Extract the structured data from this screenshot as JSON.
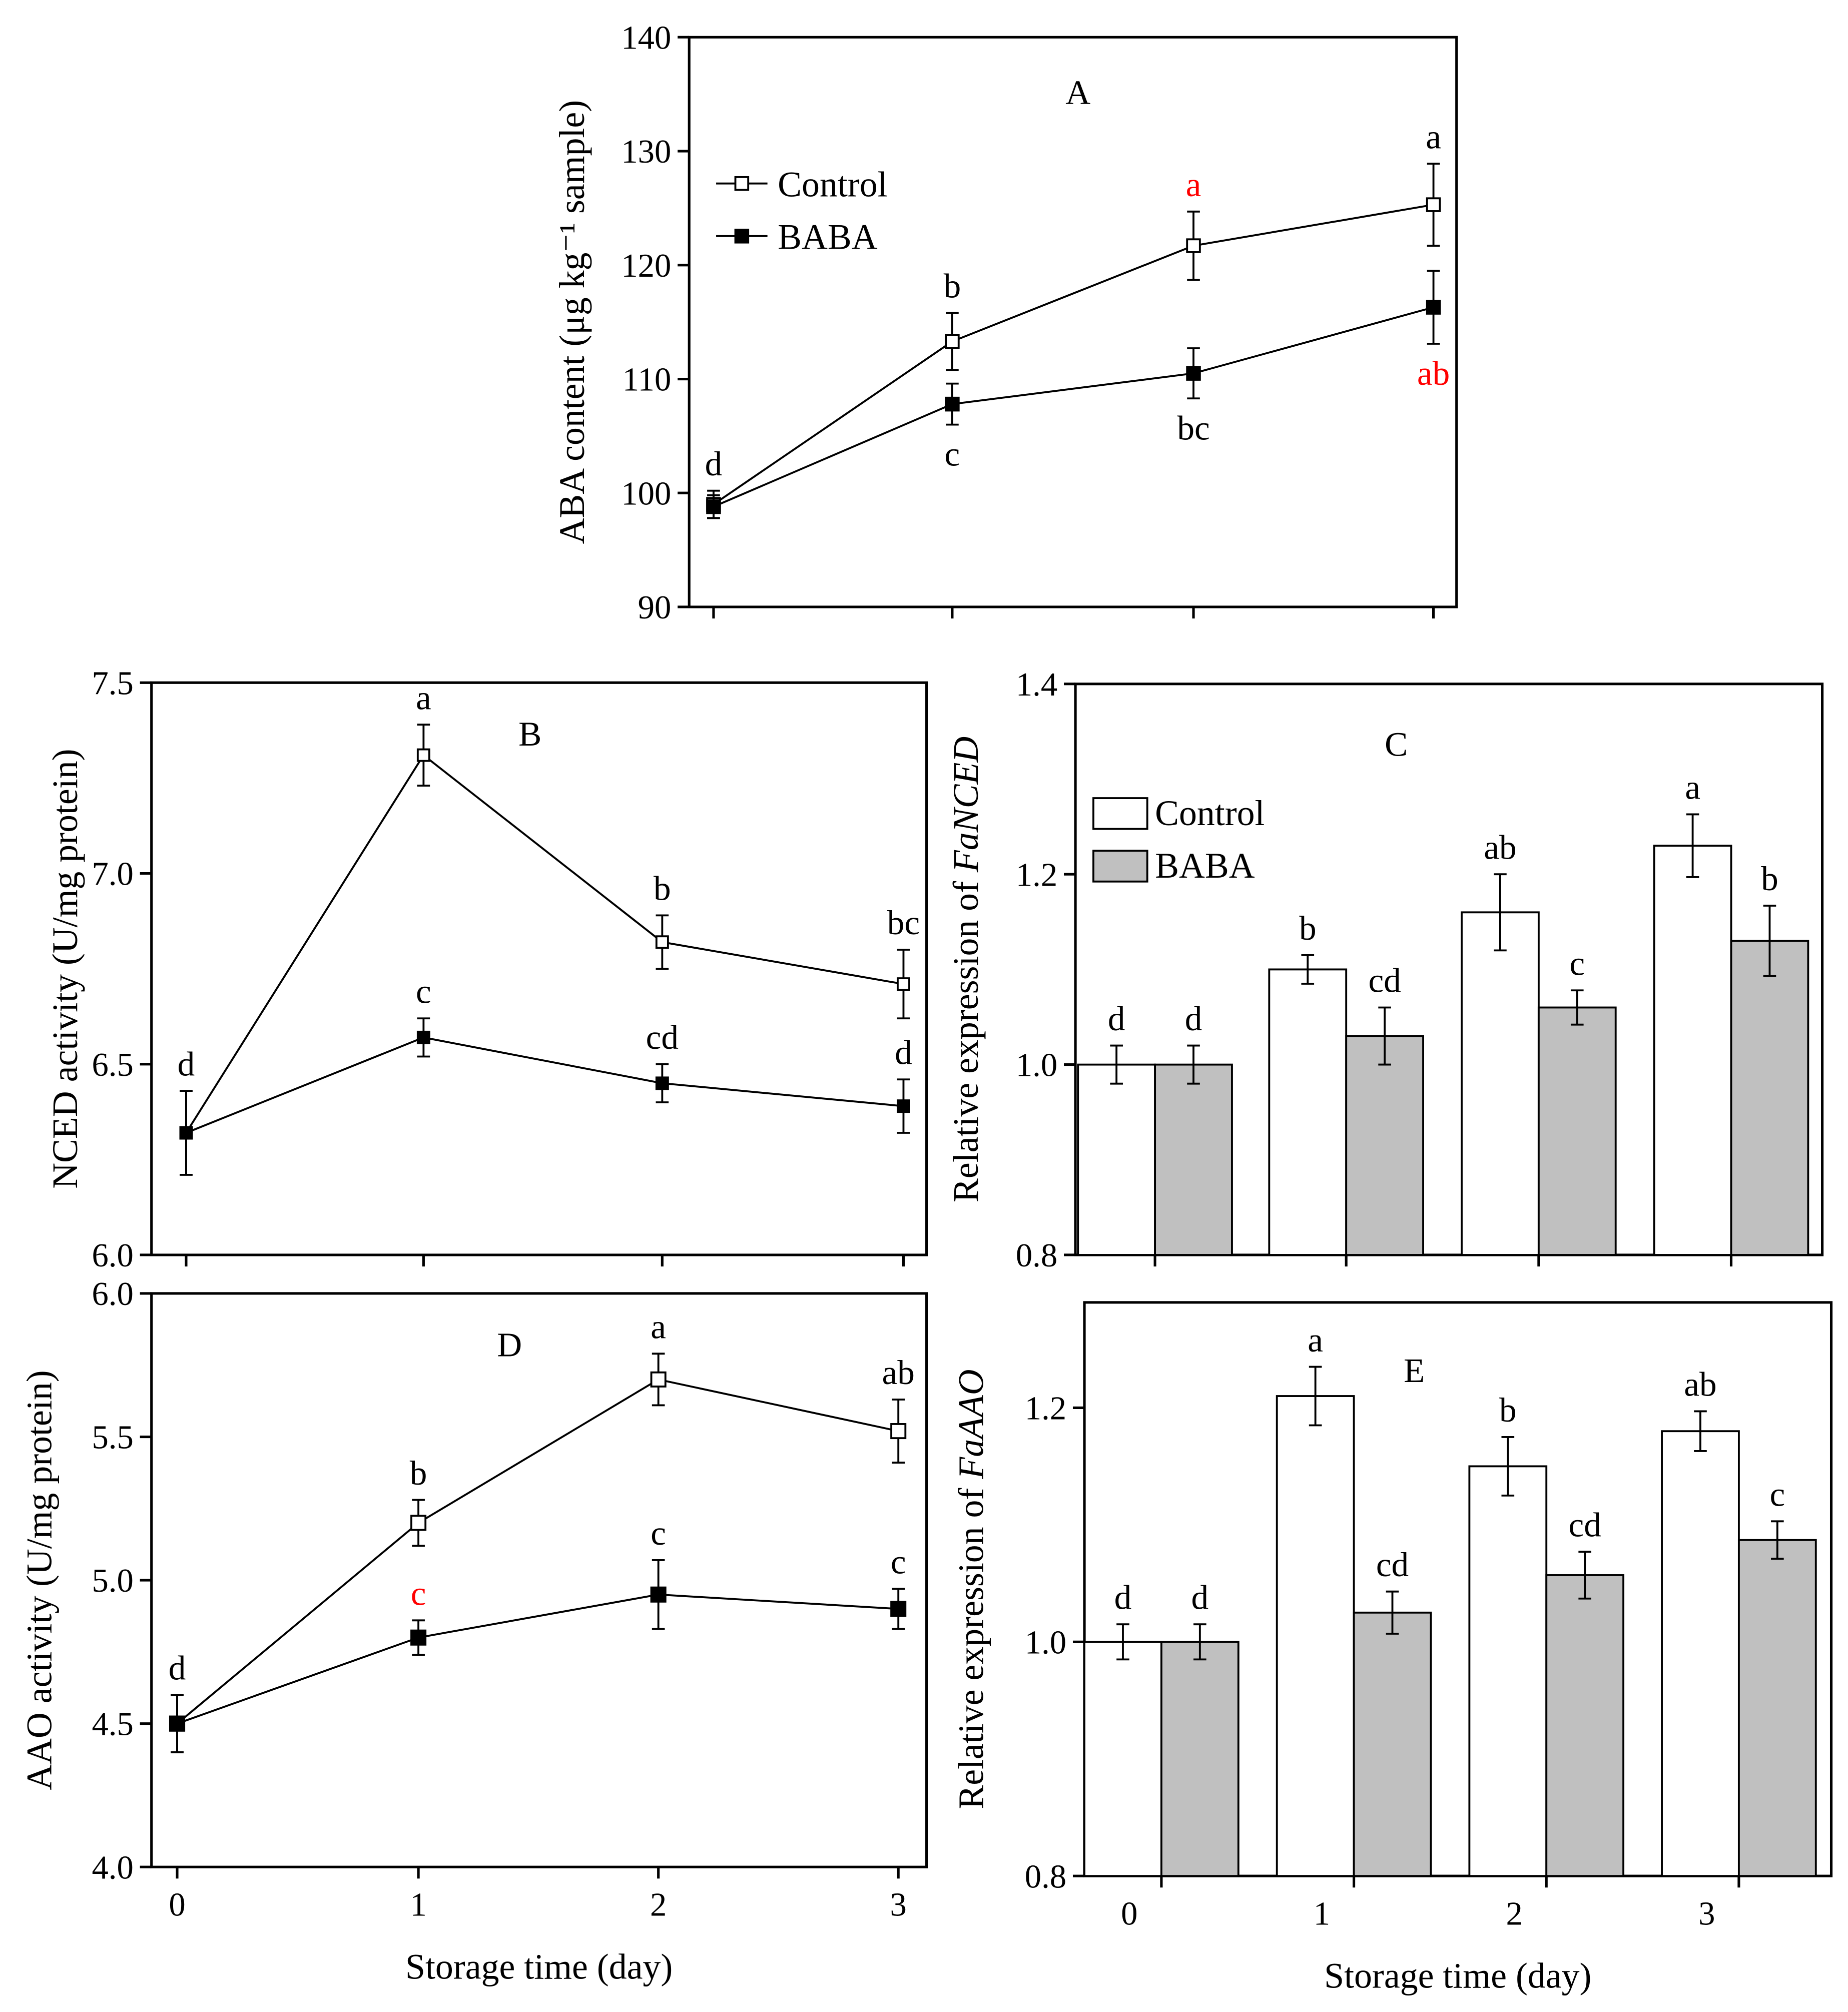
{
  "chart_data": [
    {
      "id": "A",
      "type": "line",
      "panel_label": "A",
      "ylabel": "ABA content (μg kg⁻¹ sample)",
      "ylabel_italic": "",
      "xlabel": "",
      "ylim": [
        90,
        140
      ],
      "yticks": [
        90,
        100,
        110,
        120,
        130,
        140
      ],
      "x": [
        0,
        1,
        2,
        3
      ],
      "xticklabels": [],
      "legend": [
        "Control",
        "BABA"
      ],
      "legend_placement": "upper-left",
      "series": [
        {
          "name": "Control",
          "values": [
            99.0,
            113.3,
            121.7,
            125.3
          ],
          "errors": [
            1.2,
            2.5,
            3.0,
            3.6
          ],
          "letters": [
            "d",
            "b",
            "a",
            "a"
          ],
          "letter_colors": [
            "#000000",
            "#000000",
            "#ff0000",
            "#000000"
          ]
        },
        {
          "name": "BABA",
          "values": [
            98.8,
            107.8,
            110.5,
            116.3
          ],
          "errors": [
            1.0,
            1.8,
            2.2,
            3.2
          ],
          "letters": [
            "",
            "c",
            "bc",
            "ab"
          ],
          "letter_colors": [
            "#000000",
            "#000000",
            "#000000",
            "#ff0000"
          ]
        }
      ]
    },
    {
      "id": "B",
      "type": "line",
      "panel_label": "B",
      "ylabel": "NCED activity (U/mg protein)",
      "ylabel_italic": "",
      "xlabel": "",
      "ylim": [
        6.0,
        7.5
      ],
      "yticks": [
        "6.0",
        "6.5",
        "7.0",
        "7.5"
      ],
      "x": [
        0,
        1,
        2,
        3
      ],
      "xticklabels": [],
      "legend": [],
      "series": [
        {
          "name": "Control",
          "values": [
            6.32,
            7.31,
            6.82,
            6.71
          ],
          "errors": [
            0.11,
            0.08,
            0.07,
            0.09
          ],
          "letters": [
            "d",
            "a",
            "b",
            "bc"
          ],
          "letter_colors": [
            "#000000",
            "#000000",
            "#000000",
            "#000000"
          ]
        },
        {
          "name": "BABA",
          "values": [
            6.32,
            6.57,
            6.45,
            6.39
          ],
          "errors": [
            0.11,
            0.05,
            0.05,
            0.07
          ],
          "letters": [
            "",
            "c",
            "cd",
            "d"
          ],
          "letter_colors": [
            "#000000",
            "#000000",
            "#000000",
            "#000000"
          ]
        }
      ]
    },
    {
      "id": "C",
      "type": "bar",
      "panel_label": "C",
      "ylabel": "Relative expression of ",
      "ylabel_italic": "FaNCED",
      "xlabel": "",
      "ylim": [
        0.8,
        1.4
      ],
      "yticks": [
        "0.8",
        "1.0",
        "1.2",
        "1.4"
      ],
      "categories": [
        "0",
        "1",
        "2",
        "3"
      ],
      "xticklabels": [],
      "legend": [
        "Control",
        "BABA"
      ],
      "legend_placement": "upper-left",
      "series": [
        {
          "name": "Control",
          "values": [
            1.0,
            1.1,
            1.16,
            1.23
          ],
          "errors": [
            0.02,
            0.015,
            0.04,
            0.033
          ],
          "letters": [
            "d",
            "b",
            "ab",
            "a"
          ],
          "letter_colors": [
            "#000000",
            "#000000",
            "#000000",
            "#000000"
          ]
        },
        {
          "name": "BABA",
          "values": [
            1.0,
            1.03,
            1.06,
            1.13
          ],
          "errors": [
            0.02,
            0.03,
            0.018,
            0.037
          ],
          "letters": [
            "d",
            "cd",
            "c",
            "b"
          ],
          "letter_colors": [
            "#000000",
            "#000000",
            "#000000",
            "#000000"
          ]
        }
      ]
    },
    {
      "id": "D",
      "type": "line",
      "panel_label": "D",
      "ylabel": "AAO activity (U/mg protein)",
      "ylabel_italic": "",
      "xlabel": "Storage time (day)",
      "ylim": [
        4.0,
        6.0
      ],
      "yticks": [
        "4.0",
        "4.5",
        "5.0",
        "5.5",
        "6.0"
      ],
      "x": [
        0,
        1,
        2,
        3
      ],
      "xticklabels": [
        "0",
        "1",
        "2",
        "3"
      ],
      "legend": [],
      "series": [
        {
          "name": "Control",
          "values": [
            4.5,
            5.2,
            5.7,
            5.52
          ],
          "errors": [
            0.1,
            0.08,
            0.09,
            0.11
          ],
          "letters": [
            "d",
            "b",
            "a",
            "ab"
          ],
          "letter_colors": [
            "#000000",
            "#000000",
            "#000000",
            "#000000"
          ]
        },
        {
          "name": "BABA",
          "values": [
            4.5,
            4.8,
            4.95,
            4.9
          ],
          "errors": [
            0.1,
            0.06,
            0.12,
            0.07
          ],
          "letters": [
            "",
            "c",
            "c",
            "c"
          ],
          "letter_colors": [
            "#000000",
            "#ff0000",
            "#000000",
            "#000000"
          ]
        }
      ]
    },
    {
      "id": "E",
      "type": "bar",
      "panel_label": "E",
      "ylabel": "Relative expression of ",
      "ylabel_italic": "FaAAO",
      "xlabel": "Storage time (day)",
      "ylim": [
        0.8,
        1.29
      ],
      "yticks": [
        "0.8",
        "1.0",
        "1.2"
      ],
      "categories": [
        "0",
        "1",
        "2",
        "3"
      ],
      "xticklabels": [
        "0",
        "1",
        "2",
        "3"
      ],
      "legend": [],
      "series": [
        {
          "name": "Control",
          "values": [
            1.0,
            1.21,
            1.15,
            1.18
          ],
          "errors": [
            0.015,
            0.025,
            0.025,
            0.017
          ],
          "letters": [
            "d",
            "a",
            "b",
            "ab"
          ],
          "letter_colors": [
            "#000000",
            "#000000",
            "#000000",
            "#000000"
          ]
        },
        {
          "name": "BABA",
          "values": [
            1.0,
            1.025,
            1.057,
            1.087
          ],
          "errors": [
            0.015,
            0.018,
            0.02,
            0.016
          ],
          "letters": [
            "d",
            "cd",
            "cd",
            "c"
          ],
          "letter_colors": [
            "#000000",
            "#000000",
            "#000000",
            "#000000"
          ]
        }
      ]
    }
  ],
  "colors": {
    "control_fill": "#ffffff",
    "baba_fill": "#000000",
    "baba_bar_fill": "#c0c0c0",
    "axis": "#000000"
  }
}
